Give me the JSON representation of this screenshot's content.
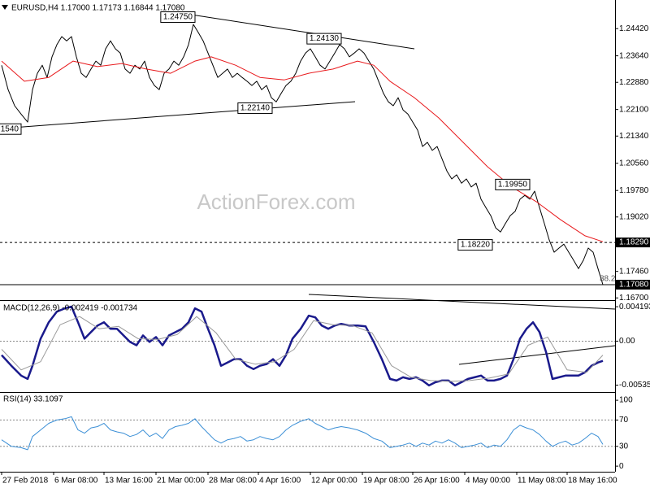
{
  "chart_data": [
    {
      "type": "line",
      "title": "EURUSD,H4  1.17000 1.17173 1.16844 1.17080",
      "watermark": "ActionForex.com",
      "fib_label": "38.2",
      "xlim": [
        0,
        378.5
      ],
      "ylim": [
        1.1666,
        1.2517
      ],
      "yticks": [
        {
          "value": 1.2442,
          "label": "1.24420"
        },
        {
          "value": 1.2364,
          "label": "1.23640"
        },
        {
          "value": 1.2288,
          "label": "1.22880"
        },
        {
          "value": 1.221,
          "label": "1.22100"
        },
        {
          "value": 1.2134,
          "label": "1.21340"
        },
        {
          "value": 1.2056,
          "label": "1.20560"
        },
        {
          "value": 1.1978,
          "label": "1.19780"
        },
        {
          "value": 1.1902,
          "label": "1.19020"
        },
        {
          "value": 1.1746,
          "label": "1.17460"
        },
        {
          "value": 1.167,
          "label": "1.16700"
        }
      ],
      "hlines": [
        {
          "value": 1.1829,
          "label": "1.18290",
          "style": "dashed"
        },
        {
          "value": 1.1708,
          "label": "1.17080",
          "style": "solid"
        }
      ],
      "annotations": [
        {
          "label": "1.24750",
          "value": 1.2475,
          "x": 120
        },
        {
          "label": "1.24130",
          "value": 1.2413,
          "x": 210
        },
        {
          "label": "1.22140",
          "value": 1.2214,
          "x": 167.5
        },
        {
          "label": "1540",
          "value": 1.2154,
          "x": 13
        },
        {
          "label": "1.19950",
          "value": 1.1995,
          "x": 326
        },
        {
          "label": "1.18220",
          "value": 1.1822,
          "x": 303
        }
      ],
      "series": [
        {
          "color": "#000000",
          "width": 1,
          "x": [
            1,
            5,
            9,
            13,
            17,
            20,
            23,
            26,
            29,
            32,
            35,
            38,
            41,
            44,
            47,
            50,
            53,
            56,
            59,
            62,
            65,
            68,
            71,
            74,
            77,
            80,
            83,
            86,
            89,
            92,
            95,
            98,
            101,
            104,
            107,
            110,
            113,
            116,
            119,
            122,
            125,
            128,
            131,
            134,
            137,
            140,
            143,
            146,
            149,
            152,
            155,
            158,
            161,
            164,
            167,
            170,
            173,
            176,
            179,
            182,
            185,
            188,
            191,
            194,
            197,
            200,
            203,
            206,
            209,
            212,
            215,
            218,
            221,
            224,
            227,
            230,
            233,
            236,
            239,
            242,
            245,
            248,
            251,
            254,
            257,
            260,
            263,
            266,
            269,
            272,
            275,
            278,
            281,
            284,
            287,
            290,
            293,
            296,
            299,
            302,
            305,
            308,
            311,
            314,
            317,
            320,
            323,
            326,
            329,
            332,
            335,
            338,
            341,
            344,
            347,
            350,
            353,
            356,
            359,
            362,
            365,
            368,
            371
          ],
          "values": [
            1.2337,
            1.2267,
            1.2221,
            1.2197,
            1.2174,
            1.2267,
            1.2314,
            1.2337,
            1.2302,
            1.2361,
            1.2396,
            1.2419,
            1.2407,
            1.2419,
            1.2361,
            1.2314,
            1.2302,
            1.2326,
            1.2349,
            1.2337,
            1.2384,
            1.2407,
            1.2384,
            1.2372,
            1.2326,
            1.2314,
            1.2337,
            1.2326,
            1.2349,
            1.2302,
            1.2279,
            1.2267,
            1.2314,
            1.2326,
            1.2349,
            1.2337,
            1.2361,
            1.2396,
            1.2454,
            1.2431,
            1.2407,
            1.2372,
            1.2337,
            1.2302,
            1.2314,
            1.2326,
            1.2302,
            1.2314,
            1.2302,
            1.2291,
            1.2279,
            1.2291,
            1.2267,
            1.2279,
            1.2244,
            1.2232,
            1.2256,
            1.2279,
            1.2291,
            1.2314,
            1.2349,
            1.2372,
            1.2384,
            1.2361,
            1.2337,
            1.2326,
            1.2349,
            1.2372,
            1.2396,
            1.2384,
            1.2361,
            1.2372,
            1.2384,
            1.2372,
            1.2349,
            1.2326,
            1.2291,
            1.2256,
            1.2232,
            1.2221,
            1.2244,
            1.2209,
            1.2197,
            1.2174,
            1.2151,
            1.2104,
            1.2116,
            1.2093,
            1.2104,
            1.2069,
            1.2034,
            1.2011,
            1.2023,
            1.1999,
            1.2011,
            1.1988,
            1.1999,
            1.1953,
            1.1929,
            1.1906,
            1.1871,
            1.1859,
            1.1883,
            1.1906,
            1.1918,
            1.1953,
            1.1964,
            1.1953,
            1.1976,
            1.1929,
            1.1883,
            1.1836,
            1.1801,
            1.1813,
            1.1824,
            1.1801,
            1.1778,
            1.1754,
            1.1778,
            1.1813,
            1.1801,
            1.1754,
            1.1708
          ]
        },
        {
          "color": "#e8191c",
          "width": 1,
          "x": [
            1,
            15,
            30,
            45,
            60,
            75,
            90,
            105,
            120,
            130,
            145,
            160,
            175,
            190,
            205,
            220,
            230,
            240,
            255,
            270,
            285,
            300,
            315,
            330,
            345,
            360,
            371
          ],
          "values": [
            1.2349,
            1.2291,
            1.2302,
            1.2349,
            1.2333,
            1.2342,
            1.2326,
            1.2314,
            1.2349,
            1.2361,
            1.2337,
            1.2302,
            1.2295,
            1.2314,
            1.2326,
            1.2349,
            1.2337,
            1.2291,
            1.2244,
            1.2186,
            1.2116,
            1.2046,
            1.1988,
            1.1946,
            1.1894,
            1.1848,
            1.1831
          ]
        }
      ]
    },
    {
      "type": "line",
      "title": "MACD(12,26,9) -0.002419 -0.001734",
      "xlim": [
        0,
        378.5
      ],
      "ylim": [
        -0.006,
        0.0047
      ],
      "yticks": [
        0.004193,
        {
          "value": 0,
          "label": "0.00"
        },
        -0.005356
      ],
      "levels": [
        0
      ],
      "series": [
        {
          "color": "#1a1a8c",
          "width": 2.5,
          "x": [
            1,
            7,
            13,
            17,
            20,
            25,
            30,
            35,
            40,
            44,
            48,
            52,
            56,
            60,
            64,
            68,
            72,
            76,
            80,
            84,
            88,
            92,
            96,
            100,
            104,
            108,
            112,
            116,
            120,
            124,
            128,
            132,
            136,
            140,
            144,
            148,
            152,
            156,
            160,
            164,
            168,
            172,
            176,
            180,
            185,
            190,
            194,
            198,
            202,
            206,
            210,
            215,
            220,
            225,
            230,
            235,
            240,
            244,
            248,
            252,
            256,
            260,
            264,
            268,
            272,
            276,
            280,
            284,
            288,
            292,
            296,
            300,
            304,
            308,
            312,
            316,
            320,
            324,
            328,
            332,
            336,
            340,
            344,
            348,
            352,
            356,
            360,
            364,
            368,
            371
          ],
          "values": [
            -0.0017,
            -0.003,
            -0.0042,
            -0.0046,
            -0.003,
            0.0003,
            0.0023,
            0.0036,
            0.004,
            0.0042,
            0.0023,
            0.0003,
            0.0011,
            0.0019,
            0.0023,
            0.0015,
            0.0015,
            0.0007,
            -0.0001,
            -0.0005,
            0.0007,
            -0.0001,
            0.0005,
            -0.0005,
            0.0007,
            0.0011,
            0.0015,
            0.0023,
            0.004,
            0.0036,
            0.0015,
            -0.0005,
            -0.003,
            -0.0026,
            -0.0022,
            -0.0022,
            -0.003,
            -0.0034,
            -0.003,
            -0.0028,
            -0.0022,
            -0.003,
            -0.0017,
            0.0003,
            0.0015,
            0.0031,
            0.0029,
            0.0019,
            0.0015,
            0.0019,
            0.0021,
            0.0019,
            0.0019,
            0.0018,
            -0.0001,
            -0.0022,
            -0.0046,
            -0.0048,
            -0.0044,
            -0.0046,
            -0.0044,
            -0.0048,
            -0.0054,
            -0.005,
            -0.0048,
            -0.0048,
            -0.0054,
            -0.005,
            -0.0046,
            -0.0044,
            -0.0042,
            -0.0048,
            -0.0048,
            -0.0046,
            -0.0042,
            -0.0022,
            0.0003,
            0.0015,
            0.0023,
            0.0011,
            -0.0013,
            -0.0046,
            -0.0044,
            -0.0042,
            -0.0042,
            -0.0042,
            -0.0038,
            -0.003,
            -0.0026,
            -0.0024
          ]
        },
        {
          "color": "#999999",
          "width": 1,
          "x": [
            1,
            13,
            25,
            37,
            49,
            61,
            73,
            85,
            97,
            109,
            121,
            133,
            145,
            157,
            169,
            181,
            193,
            205,
            217,
            229,
            241,
            253,
            265,
            277,
            289,
            301,
            313,
            325,
            337,
            349,
            361,
            371
          ],
          "values": [
            -0.001,
            -0.0035,
            -0.0025,
            0.002,
            0.003,
            0.0015,
            0.0018,
            0.0003,
            0.0002,
            0.0008,
            0.003,
            0.001,
            -0.0022,
            -0.0028,
            -0.0025,
            -0.001,
            0.0025,
            0.002,
            0.0019,
            0.001,
            -0.003,
            -0.0044,
            -0.0048,
            -0.0049,
            -0.0048,
            -0.0045,
            -0.004,
            -0.0005,
            0.0005,
            -0.0035,
            -0.0038,
            -0.0017
          ]
        }
      ]
    },
    {
      "type": "line",
      "title": "RSI(14) 33.1097",
      "xlim": [
        0,
        378.5
      ],
      "ylim": [
        -8.5,
        110
      ],
      "yticks": [
        100,
        70,
        30,
        0
      ],
      "levels": [
        70,
        30
      ],
      "xticks": [
        {
          "value": 1,
          "label": "27 Feb 2018"
        },
        {
          "value": 33,
          "label": "6 Mar 08:00"
        },
        {
          "value": 64,
          "label": "13 Mar 16:00"
        },
        {
          "value": 96,
          "label": "21 Mar 00:00"
        },
        {
          "value": 128,
          "label": "28 Mar 08:00"
        },
        {
          "value": 159,
          "label": "4 Apr 16:00"
        },
        {
          "value": 191,
          "label": "12 Apr 00:00"
        },
        {
          "value": 223,
          "label": "19 Apr 08:00"
        },
        {
          "value": 254,
          "label": "26 Apr 16:00"
        },
        {
          "value": 286,
          "label": "4 May 00:00"
        },
        {
          "value": 318,
          "label": "11 May 08:00"
        },
        {
          "value": 349,
          "label": "18 May 16:00"
        }
      ],
      "series": [
        {
          "color": "#3b8fd6",
          "width": 1,
          "x": [
            1,
            7,
            13,
            17,
            20,
            25,
            30,
            35,
            40,
            44,
            48,
            52,
            56,
            60,
            64,
            68,
            72,
            76,
            80,
            84,
            88,
            92,
            96,
            100,
            104,
            108,
            112,
            116,
            120,
            124,
            128,
            132,
            136,
            140,
            144,
            148,
            152,
            156,
            160,
            164,
            168,
            172,
            176,
            180,
            185,
            190,
            194,
            198,
            202,
            206,
            210,
            215,
            220,
            225,
            230,
            235,
            240,
            244,
            248,
            252,
            256,
            260,
            264,
            268,
            272,
            276,
            280,
            284,
            288,
            292,
            296,
            300,
            304,
            308,
            312,
            316,
            320,
            324,
            328,
            332,
            336,
            340,
            344,
            348,
            352,
            356,
            360,
            364,
            368,
            371
          ],
          "values": [
            40,
            30,
            28,
            25,
            45,
            55,
            65,
            70,
            72,
            75,
            55,
            50,
            58,
            60,
            65,
            55,
            52,
            50,
            45,
            48,
            55,
            45,
            50,
            42,
            55,
            60,
            62,
            65,
            72,
            60,
            50,
            40,
            35,
            40,
            42,
            45,
            38,
            40,
            45,
            42,
            40,
            45,
            55,
            62,
            68,
            72,
            65,
            60,
            55,
            58,
            60,
            58,
            55,
            50,
            42,
            38,
            28,
            30,
            32,
            35,
            30,
            35,
            32,
            38,
            35,
            40,
            35,
            28,
            30,
            32,
            35,
            28,
            32,
            30,
            40,
            55,
            62,
            58,
            55,
            48,
            38,
            30,
            35,
            38,
            32,
            35,
            42,
            50,
            45,
            33
          ]
        }
      ]
    }
  ]
}
